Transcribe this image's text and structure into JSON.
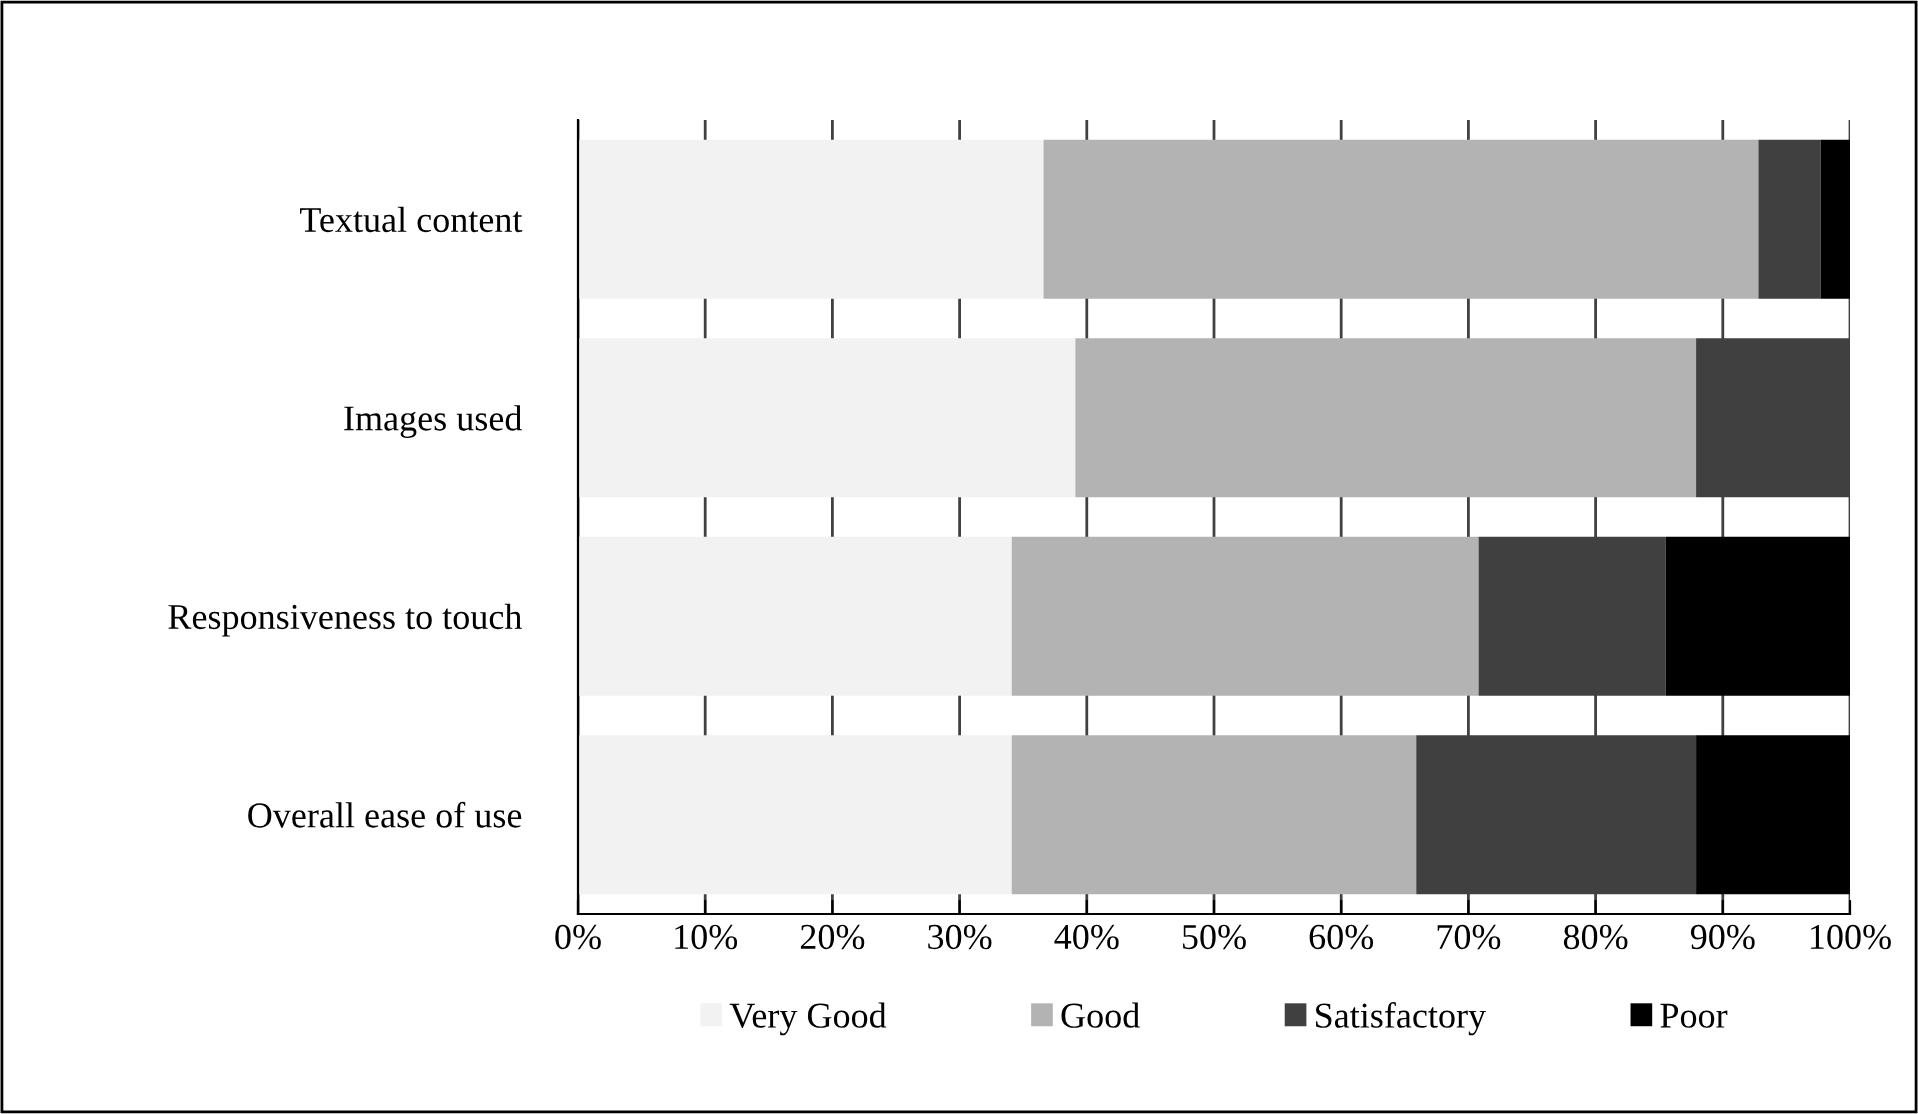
{
  "chart_data": {
    "type": "bar",
    "orientation": "horizontal",
    "stacked": true,
    "categories": [
      "Textual content",
      "Images used",
      "Responsiveness to touch",
      "Overall ease of use"
    ],
    "series": [
      {
        "name": "Very Good",
        "color": "#f2f2f2",
        "values": [
          36.6,
          39.1,
          34.1,
          34.1
        ]
      },
      {
        "name": "Good",
        "color": "#b3b3b3",
        "values": [
          56.2,
          48.8,
          36.7,
          31.8
        ]
      },
      {
        "name": "Satisfactory",
        "color": "#404040",
        "values": [
          4.9,
          12.1,
          14.7,
          22.0
        ]
      },
      {
        "name": "Poor",
        "color": "#000000",
        "values": [
          2.3,
          0,
          14.5,
          12.1
        ]
      }
    ],
    "xlim": [
      0,
      100
    ],
    "xticks": [
      {
        "value": 0,
        "label": "0%"
      },
      {
        "value": 10,
        "label": "10%"
      },
      {
        "value": 20,
        "label": "20%"
      },
      {
        "value": 30,
        "label": "30%"
      },
      {
        "value": 40,
        "label": "40%"
      },
      {
        "value": 50,
        "label": "50%"
      },
      {
        "value": 60,
        "label": "60%"
      },
      {
        "value": 70,
        "label": "70%"
      },
      {
        "value": 80,
        "label": "80%"
      },
      {
        "value": 90,
        "label": "90%"
      },
      {
        "value": 100,
        "label": "100%"
      }
    ],
    "grid": "x",
    "legend": "bottom"
  }
}
